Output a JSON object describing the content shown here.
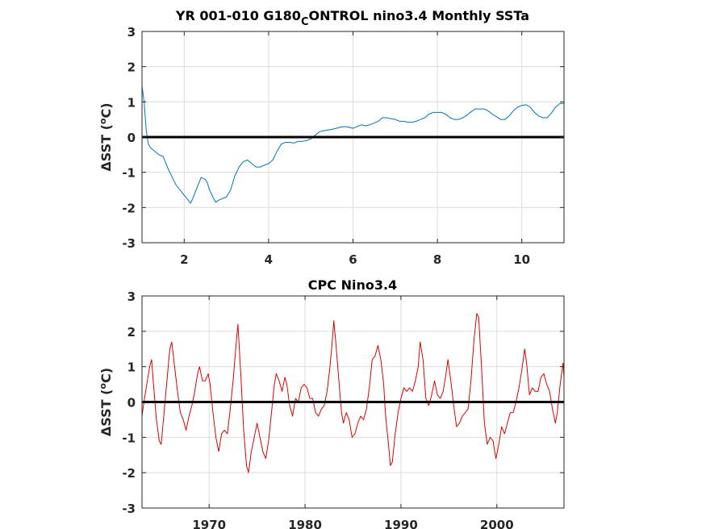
{
  "chart_data": [
    {
      "type": "line",
      "title_main": "YR 001-010 G180",
      "title_sub": "C",
      "title_rest": "ONTROL nino3.4 Monthly SSTa",
      "ylabel_prefix": "ΔSST (",
      "ylabel_sup": "o",
      "ylabel_suffix": "C)",
      "xlim": [
        1,
        11
      ],
      "ylim": [
        -3,
        3
      ],
      "xticks": [
        2,
        4,
        6,
        8,
        10
      ],
      "yticks": [
        -3,
        -2,
        -1,
        0,
        1,
        2,
        3
      ],
      "grid": true,
      "zero_line": true,
      "series": [
        {
          "color": "#0072BD",
          "points": [
            [
              1.0,
              1.45
            ],
            [
              1.05,
              1.0
            ],
            [
              1.1,
              0.2
            ],
            [
              1.15,
              -0.2
            ],
            [
              1.2,
              -0.3
            ],
            [
              1.3,
              -0.4
            ],
            [
              1.4,
              -0.5
            ],
            [
              1.5,
              -0.55
            ],
            [
              1.55,
              -0.7
            ],
            [
              1.6,
              -0.85
            ],
            [
              1.7,
              -1.1
            ],
            [
              1.8,
              -1.35
            ],
            [
              1.9,
              -1.5
            ],
            [
              2.0,
              -1.65
            ],
            [
              2.1,
              -1.8
            ],
            [
              2.15,
              -1.88
            ],
            [
              2.2,
              -1.75
            ],
            [
              2.3,
              -1.45
            ],
            [
              2.4,
              -1.15
            ],
            [
              2.5,
              -1.2
            ],
            [
              2.55,
              -1.3
            ],
            [
              2.6,
              -1.5
            ],
            [
              2.7,
              -1.75
            ],
            [
              2.75,
              -1.85
            ],
            [
              2.8,
              -1.8
            ],
            [
              2.9,
              -1.75
            ],
            [
              3.0,
              -1.7
            ],
            [
              3.1,
              -1.5
            ],
            [
              3.2,
              -1.1
            ],
            [
              3.3,
              -0.85
            ],
            [
              3.4,
              -0.7
            ],
            [
              3.5,
              -0.65
            ],
            [
              3.6,
              -0.75
            ],
            [
              3.7,
              -0.85
            ],
            [
              3.8,
              -0.85
            ],
            [
              3.9,
              -0.8
            ],
            [
              4.0,
              -0.75
            ],
            [
              4.1,
              -0.65
            ],
            [
              4.2,
              -0.4
            ],
            [
              4.3,
              -0.2
            ],
            [
              4.4,
              -0.15
            ],
            [
              4.5,
              -0.15
            ],
            [
              4.6,
              -0.17
            ],
            [
              4.7,
              -0.12
            ],
            [
              4.8,
              -0.12
            ],
            [
              4.9,
              -0.1
            ],
            [
              5.0,
              -0.05
            ],
            [
              5.1,
              0.05
            ],
            [
              5.2,
              0.15
            ],
            [
              5.3,
              0.18
            ],
            [
              5.4,
              0.2
            ],
            [
              5.5,
              0.22
            ],
            [
              5.6,
              0.25
            ],
            [
              5.7,
              0.28
            ],
            [
              5.8,
              0.3
            ],
            [
              5.9,
              0.28
            ],
            [
              6.0,
              0.25
            ],
            [
              6.1,
              0.3
            ],
            [
              6.2,
              0.35
            ],
            [
              6.3,
              0.32
            ],
            [
              6.4,
              0.35
            ],
            [
              6.5,
              0.4
            ],
            [
              6.6,
              0.45
            ],
            [
              6.7,
              0.55
            ],
            [
              6.8,
              0.55
            ],
            [
              6.9,
              0.52
            ],
            [
              7.0,
              0.5
            ],
            [
              7.1,
              0.45
            ],
            [
              7.2,
              0.45
            ],
            [
              7.3,
              0.42
            ],
            [
              7.4,
              0.42
            ],
            [
              7.5,
              0.45
            ],
            [
              7.6,
              0.5
            ],
            [
              7.7,
              0.55
            ],
            [
              7.8,
              0.65
            ],
            [
              7.9,
              0.7
            ],
            [
              8.0,
              0.7
            ],
            [
              8.1,
              0.7
            ],
            [
              8.2,
              0.65
            ],
            [
              8.3,
              0.55
            ],
            [
              8.4,
              0.5
            ],
            [
              8.5,
              0.5
            ],
            [
              8.6,
              0.55
            ],
            [
              8.7,
              0.62
            ],
            [
              8.8,
              0.72
            ],
            [
              8.9,
              0.8
            ],
            [
              9.0,
              0.8
            ],
            [
              9.1,
              0.8
            ],
            [
              9.2,
              0.75
            ],
            [
              9.3,
              0.65
            ],
            [
              9.4,
              0.58
            ],
            [
              9.5,
              0.5
            ],
            [
              9.6,
              0.5
            ],
            [
              9.7,
              0.6
            ],
            [
              9.8,
              0.75
            ],
            [
              9.9,
              0.85
            ],
            [
              10.0,
              0.9
            ],
            [
              10.1,
              0.92
            ],
            [
              10.2,
              0.85
            ],
            [
              10.3,
              0.7
            ],
            [
              10.4,
              0.6
            ],
            [
              10.5,
              0.55
            ],
            [
              10.6,
              0.55
            ],
            [
              10.7,
              0.68
            ],
            [
              10.8,
              0.85
            ],
            [
              10.9,
              0.95
            ],
            [
              11.0,
              0.96
            ]
          ]
        }
      ]
    },
    {
      "type": "line",
      "title": "CPC Nino3.4",
      "ylabel_prefix": "ΔSST (",
      "ylabel_sup": "o",
      "ylabel_suffix": "C)",
      "xlim": [
        1963,
        2007
      ],
      "ylim": [
        -3,
        3
      ],
      "xticks": [
        1970,
        1980,
        1990,
        2000
      ],
      "yticks": [
        -3,
        -2,
        -1,
        0,
        1,
        2,
        3
      ],
      "grid": true,
      "zero_line": true,
      "series": [
        {
          "color": "#E00000",
          "points": [
            [
              1963.0,
              -0.4
            ],
            [
              1963.2,
              0.0
            ],
            [
              1963.5,
              0.5
            ],
            [
              1963.8,
              1.0
            ],
            [
              1964.0,
              1.2
            ],
            [
              1964.2,
              0.5
            ],
            [
              1964.5,
              -0.5
            ],
            [
              1964.8,
              -1.1
            ],
            [
              1965.0,
              -1.2
            ],
            [
              1965.3,
              -0.3
            ],
            [
              1965.6,
              0.6
            ],
            [
              1965.9,
              1.5
            ],
            [
              1966.1,
              1.7
            ],
            [
              1966.4,
              1.0
            ],
            [
              1966.7,
              0.3
            ],
            [
              1967.0,
              -0.3
            ],
            [
              1967.3,
              -0.5
            ],
            [
              1967.6,
              -0.8
            ],
            [
              1967.9,
              -0.4
            ],
            [
              1968.2,
              -0.1
            ],
            [
              1968.5,
              0.3
            ],
            [
              1968.8,
              0.8
            ],
            [
              1969.0,
              1.0
            ],
            [
              1969.3,
              0.6
            ],
            [
              1969.6,
              0.6
            ],
            [
              1969.9,
              0.8
            ],
            [
              1970.1,
              0.5
            ],
            [
              1970.4,
              -0.3
            ],
            [
              1970.7,
              -1.0
            ],
            [
              1971.0,
              -1.4
            ],
            [
              1971.3,
              -0.9
            ],
            [
              1971.6,
              -0.8
            ],
            [
              1971.9,
              -0.9
            ],
            [
              1972.2,
              -0.2
            ],
            [
              1972.5,
              0.6
            ],
            [
              1972.8,
              1.6
            ],
            [
              1973.0,
              2.2
            ],
            [
              1973.3,
              0.8
            ],
            [
              1973.6,
              -0.8
            ],
            [
              1973.9,
              -1.8
            ],
            [
              1974.1,
              -2.0
            ],
            [
              1974.4,
              -1.4
            ],
            [
              1974.7,
              -1.0
            ],
            [
              1975.0,
              -0.6
            ],
            [
              1975.3,
              -1.0
            ],
            [
              1975.6,
              -1.4
            ],
            [
              1975.9,
              -1.6
            ],
            [
              1976.2,
              -1.1
            ],
            [
              1976.5,
              -0.3
            ],
            [
              1976.8,
              0.5
            ],
            [
              1977.0,
              0.8
            ],
            [
              1977.3,
              0.6
            ],
            [
              1977.6,
              0.3
            ],
            [
              1977.9,
              0.7
            ],
            [
              1978.1,
              0.5
            ],
            [
              1978.4,
              -0.1
            ],
            [
              1978.7,
              -0.4
            ],
            [
              1979.0,
              0.1
            ],
            [
              1979.3,
              0.0
            ],
            [
              1979.6,
              0.4
            ],
            [
              1979.9,
              0.5
            ],
            [
              1980.2,
              0.4
            ],
            [
              1980.5,
              0.1
            ],
            [
              1980.8,
              0.1
            ],
            [
              1981.1,
              -0.3
            ],
            [
              1981.4,
              -0.4
            ],
            [
              1981.7,
              -0.2
            ],
            [
              1982.0,
              -0.1
            ],
            [
              1982.3,
              0.3
            ],
            [
              1982.6,
              1.0
            ],
            [
              1982.8,
              1.6
            ],
            [
              1983.0,
              2.3
            ],
            [
              1983.2,
              1.7
            ],
            [
              1983.5,
              0.7
            ],
            [
              1983.8,
              -0.3
            ],
            [
              1984.0,
              -0.6
            ],
            [
              1984.3,
              -0.3
            ],
            [
              1984.6,
              -0.5
            ],
            [
              1984.9,
              -1.0
            ],
            [
              1985.2,
              -0.9
            ],
            [
              1985.5,
              -0.6
            ],
            [
              1985.8,
              -0.4
            ],
            [
              1986.1,
              -0.5
            ],
            [
              1986.4,
              -0.2
            ],
            [
              1986.7,
              0.4
            ],
            [
              1987.0,
              1.2
            ],
            [
              1987.3,
              1.3
            ],
            [
              1987.6,
              1.6
            ],
            [
              1987.9,
              1.2
            ],
            [
              1988.2,
              0.5
            ],
            [
              1988.4,
              -0.4
            ],
            [
              1988.7,
              -1.2
            ],
            [
              1988.9,
              -1.8
            ],
            [
              1989.1,
              -1.7
            ],
            [
              1989.4,
              -0.9
            ],
            [
              1989.7,
              -0.3
            ],
            [
              1990.0,
              0.1
            ],
            [
              1990.3,
              0.4
            ],
            [
              1990.6,
              0.3
            ],
            [
              1990.9,
              0.4
            ],
            [
              1991.2,
              0.3
            ],
            [
              1991.5,
              0.6
            ],
            [
              1991.8,
              1.0
            ],
            [
              1992.0,
              1.7
            ],
            [
              1992.3,
              1.2
            ],
            [
              1992.6,
              0.1
            ],
            [
              1992.9,
              -0.1
            ],
            [
              1993.2,
              0.2
            ],
            [
              1993.5,
              0.6
            ],
            [
              1993.8,
              0.2
            ],
            [
              1994.1,
              0.1
            ],
            [
              1994.4,
              0.3
            ],
            [
              1994.7,
              0.8
            ],
            [
              1994.9,
              1.2
            ],
            [
              1995.2,
              0.6
            ],
            [
              1995.5,
              -0.1
            ],
            [
              1995.8,
              -0.7
            ],
            [
              1996.1,
              -0.6
            ],
            [
              1996.4,
              -0.4
            ],
            [
              1996.7,
              -0.3
            ],
            [
              1997.0,
              -0.2
            ],
            [
              1997.3,
              0.6
            ],
            [
              1997.6,
              1.7
            ],
            [
              1997.9,
              2.5
            ],
            [
              1998.1,
              2.4
            ],
            [
              1998.4,
              1.0
            ],
            [
              1998.7,
              -0.6
            ],
            [
              1999.0,
              -1.2
            ],
            [
              1999.3,
              -1.0
            ],
            [
              1999.6,
              -1.1
            ],
            [
              1999.9,
              -1.6
            ],
            [
              2000.2,
              -1.2
            ],
            [
              2000.5,
              -0.7
            ],
            [
              2000.8,
              -0.9
            ],
            [
              2001.1,
              -0.6
            ],
            [
              2001.4,
              -0.3
            ],
            [
              2001.7,
              -0.3
            ],
            [
              2002.0,
              0.0
            ],
            [
              2002.3,
              0.4
            ],
            [
              2002.6,
              0.9
            ],
            [
              2002.9,
              1.5
            ],
            [
              2003.1,
              1.1
            ],
            [
              2003.4,
              0.2
            ],
            [
              2003.7,
              0.4
            ],
            [
              2004.0,
              0.3
            ],
            [
              2004.3,
              0.3
            ],
            [
              2004.6,
              0.7
            ],
            [
              2004.9,
              0.8
            ],
            [
              2005.2,
              0.5
            ],
            [
              2005.5,
              0.3
            ],
            [
              2005.8,
              -0.2
            ],
            [
              2006.1,
              -0.6
            ],
            [
              2006.3,
              -0.3
            ],
            [
              2006.6,
              0.5
            ],
            [
              2006.9,
              1.1
            ],
            [
              2007.0,
              0.7
            ]
          ]
        }
      ]
    }
  ]
}
